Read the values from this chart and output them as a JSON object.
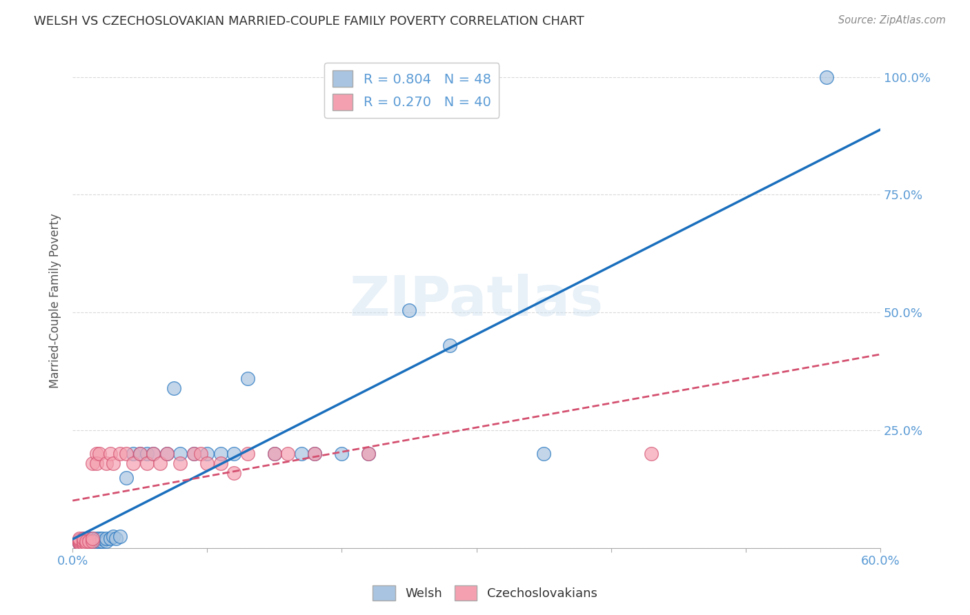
{
  "title": "WELSH VS CZECHOSLOVAKIAN MARRIED-COUPLE FAMILY POVERTY CORRELATION CHART",
  "source": "Source: ZipAtlas.com",
  "ylabel": "Married-Couple Family Poverty",
  "xlabel": "",
  "xlim": [
    0.0,
    0.6
  ],
  "ylim": [
    0.0,
    1.05
  ],
  "xticks": [
    0.0,
    0.1,
    0.2,
    0.3,
    0.4,
    0.5,
    0.6
  ],
  "xticklabels": [
    "0.0%",
    "",
    "",
    "",
    "",
    "",
    "60.0%"
  ],
  "yticks": [
    0.0,
    0.25,
    0.5,
    0.75,
    1.0
  ],
  "yticklabels_right": [
    "",
    "25.0%",
    "50.0%",
    "75.0%",
    "100.0%"
  ],
  "welsh_color": "#a8c4e0",
  "czech_color": "#f4a0b0",
  "welsh_line_color": "#1a6fbd",
  "czech_line_color": "#d45070",
  "welsh_R": 0.804,
  "welsh_N": 48,
  "czech_R": 0.27,
  "czech_N": 40,
  "watermark": "ZIPatlas",
  "legend_welsh": "Welsh",
  "legend_czech": "Czechoslovakians",
  "welsh_points_x": [
    0.005,
    0.005,
    0.005,
    0.005,
    0.008,
    0.008,
    0.008,
    0.01,
    0.01,
    0.01,
    0.012,
    0.012,
    0.015,
    0.015,
    0.018,
    0.018,
    0.02,
    0.02,
    0.022,
    0.022,
    0.025,
    0.025,
    0.028,
    0.03,
    0.032,
    0.035,
    0.04,
    0.045,
    0.05,
    0.055,
    0.06,
    0.07,
    0.075,
    0.08,
    0.09,
    0.1,
    0.11,
    0.12,
    0.13,
    0.15,
    0.17,
    0.18,
    0.2,
    0.22,
    0.25,
    0.28,
    0.35,
    0.56
  ],
  "welsh_points_y": [
    0.01,
    0.012,
    0.015,
    0.018,
    0.01,
    0.015,
    0.02,
    0.01,
    0.015,
    0.02,
    0.015,
    0.02,
    0.015,
    0.02,
    0.015,
    0.02,
    0.015,
    0.02,
    0.015,
    0.02,
    0.015,
    0.02,
    0.02,
    0.025,
    0.02,
    0.025,
    0.15,
    0.2,
    0.2,
    0.2,
    0.2,
    0.2,
    0.34,
    0.2,
    0.2,
    0.2,
    0.2,
    0.2,
    0.36,
    0.2,
    0.2,
    0.2,
    0.2,
    0.2,
    0.505,
    0.43,
    0.2,
    1.0
  ],
  "czech_points_x": [
    0.005,
    0.005,
    0.005,
    0.005,
    0.005,
    0.008,
    0.008,
    0.008,
    0.01,
    0.01,
    0.012,
    0.015,
    0.015,
    0.015,
    0.018,
    0.018,
    0.02,
    0.025,
    0.028,
    0.03,
    0.035,
    0.04,
    0.045,
    0.05,
    0.055,
    0.06,
    0.065,
    0.07,
    0.08,
    0.09,
    0.095,
    0.1,
    0.11,
    0.12,
    0.13,
    0.15,
    0.16,
    0.18,
    0.22,
    0.43
  ],
  "czech_points_y": [
    0.01,
    0.012,
    0.015,
    0.018,
    0.02,
    0.01,
    0.015,
    0.02,
    0.01,
    0.015,
    0.015,
    0.015,
    0.02,
    0.18,
    0.2,
    0.18,
    0.2,
    0.18,
    0.2,
    0.18,
    0.2,
    0.2,
    0.18,
    0.2,
    0.18,
    0.2,
    0.18,
    0.2,
    0.18,
    0.2,
    0.2,
    0.18,
    0.18,
    0.16,
    0.2,
    0.2,
    0.2,
    0.2,
    0.2,
    0.2
  ],
  "background_color": "#ffffff",
  "grid_color": "#d0d0d0",
  "title_color": "#333333",
  "axis_label_color": "#555555",
  "tick_label_color": "#5b9bd5"
}
